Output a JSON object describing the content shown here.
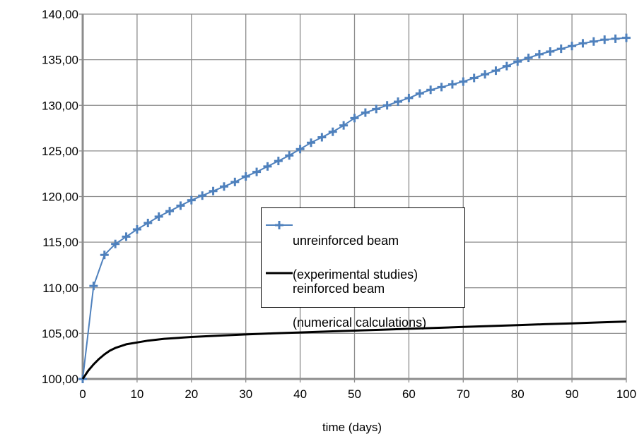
{
  "chart_data": {
    "type": "line",
    "xlabel": "time (days)",
    "ylabel": "",
    "xlim": [
      0,
      100
    ],
    "ylim": [
      100,
      140
    ],
    "x_ticks": [
      "0",
      "10",
      "20",
      "30",
      "40",
      "50",
      "60",
      "70",
      "80",
      "90",
      "100"
    ],
    "y_ticks": [
      "100,00",
      "105,00",
      "110,00",
      "115,00",
      "120,00",
      "125,00",
      "130,00",
      "135,00",
      "140,00"
    ],
    "grid": true,
    "legend_position": "center-right",
    "series": [
      {
        "name": "unreinforced beam (experimental studies)",
        "legend_lines": [
          "unreinforced beam",
          "(experimental studies)"
        ],
        "color": "#4F81BD",
        "marker": "plus",
        "x": [
          0,
          2,
          4,
          6,
          8,
          10,
          12,
          14,
          16,
          18,
          20,
          22,
          24,
          26,
          28,
          30,
          32,
          34,
          36,
          38,
          40,
          42,
          44,
          46,
          48,
          50,
          52,
          54,
          56,
          58,
          60,
          62,
          64,
          66,
          68,
          70,
          72,
          74,
          76,
          78,
          80,
          82,
          84,
          86,
          88,
          90,
          92,
          94,
          96,
          98,
          100
        ],
        "y": [
          100.0,
          110.2,
          113.6,
          114.8,
          115.6,
          116.4,
          117.1,
          117.8,
          118.4,
          119.0,
          119.6,
          120.1,
          120.6,
          121.1,
          121.6,
          122.2,
          122.7,
          123.3,
          123.9,
          124.5,
          125.2,
          125.9,
          126.5,
          127.1,
          127.8,
          128.6,
          129.2,
          129.6,
          130.0,
          130.4,
          130.8,
          131.3,
          131.7,
          132.0,
          132.3,
          132.6,
          133.0,
          133.4,
          133.8,
          134.3,
          134.8,
          135.2,
          135.6,
          135.9,
          136.2,
          136.5,
          136.8,
          137.0,
          137.2,
          137.3,
          137.4
        ]
      },
      {
        "name": "reinforced beam (numerical calculations)",
        "legend_lines": [
          "reinforced beam",
          "(numerical calculations)"
        ],
        "color": "#000000",
        "marker": "none",
        "x": [
          0,
          1,
          2,
          3,
          4,
          5,
          6,
          8,
          10,
          12,
          15,
          20,
          25,
          30,
          35,
          40,
          45,
          50,
          55,
          60,
          65,
          70,
          75,
          80,
          85,
          90,
          95,
          100
        ],
        "y": [
          100.0,
          100.9,
          101.6,
          102.2,
          102.7,
          103.1,
          103.4,
          103.8,
          104.0,
          104.2,
          104.4,
          104.6,
          104.75,
          104.88,
          105.0,
          105.1,
          105.2,
          105.3,
          105.4,
          105.5,
          105.6,
          105.7,
          105.8,
          105.9,
          106.0,
          106.1,
          106.2,
          106.3
        ]
      }
    ]
  }
}
